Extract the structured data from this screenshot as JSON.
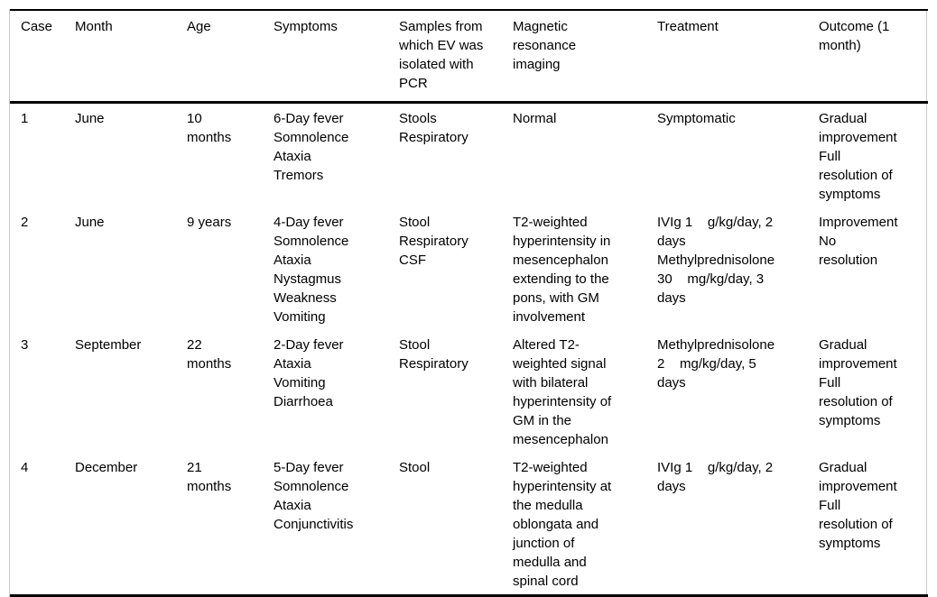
{
  "table": {
    "columns": [
      {
        "label": "Case"
      },
      {
        "label": "Month"
      },
      {
        "label": "Age"
      },
      {
        "label": "Symptoms"
      },
      {
        "label": "Samples from which EV was isolated with PCR"
      },
      {
        "label": "Magnetic resonance imaging"
      },
      {
        "label": "Treatment"
      },
      {
        "label": "Outcome (1 month)"
      }
    ],
    "rows": [
      {
        "case": "1",
        "month": "June",
        "age": "10 months",
        "symptoms": [
          "6-Day fever",
          "Somnolence",
          "Ataxia",
          "Tremors"
        ],
        "samples": [
          "Stools",
          "Respiratory"
        ],
        "mri": "Normal",
        "treatment": [
          "Symptomatic"
        ],
        "outcome": [
          "Gradual improvement",
          "Full resolution of symptoms"
        ]
      },
      {
        "case": "2",
        "month": "June",
        "age": "9 years",
        "symptoms": [
          "4-Day fever",
          "Somnolence",
          "Ataxia",
          "Nystagmus",
          "Weakness",
          "Vomiting"
        ],
        "samples": [
          "Stool",
          "Respiratory",
          "CSF"
        ],
        "mri": "T2-weighted hyperintensity in mesencephalon extending to the pons, with GM involvement",
        "treatment": [
          "IVIg 1    g/kg/day, 2\ndays",
          "Methylprednisolone\n30    mg/kg/day, 3\ndays"
        ],
        "outcome": [
          "Improvement",
          "No resolution"
        ]
      },
      {
        "case": "3",
        "month": "September",
        "age": "22 months",
        "symptoms": [
          "2-Day fever",
          "Ataxia",
          "Vomiting",
          "Diarrhoea"
        ],
        "samples": [
          "Stool",
          "Respiratory"
        ],
        "mri": "Altered T2-weighted signal with bilateral hyperintensity of GM in the mesencephalon",
        "treatment": [
          "Methylprednisolone\n2    mg/kg/day, 5\ndays"
        ],
        "outcome": [
          "Gradual improvement",
          "Full resolution of symptoms"
        ]
      },
      {
        "case": "4",
        "month": "December",
        "age": "21 months",
        "symptoms": [
          "5-Day fever",
          "Somnolence",
          "Ataxia",
          "Conjunctivitis"
        ],
        "samples": [
          "Stool"
        ],
        "mri": "T2-weighted hyperintensity at the medulla oblongata and junction of medulla and spinal cord",
        "treatment": [
          "IVIg 1    g/kg/day, 2\ndays"
        ],
        "outcome": [
          "Gradual improvement",
          "Full resolution of symptoms"
        ]
      }
    ]
  }
}
